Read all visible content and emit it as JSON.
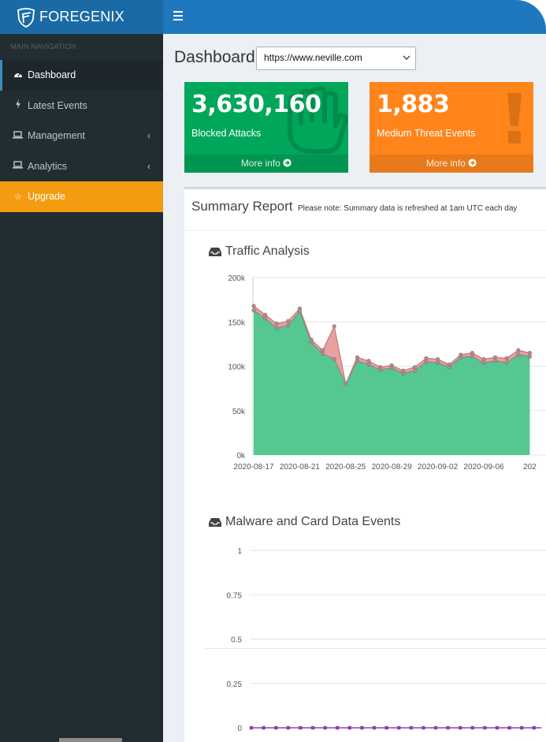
{
  "brand": {
    "name": "FOREGENIX"
  },
  "sidebar": {
    "header": "MAIN NAVIGATION",
    "items": [
      {
        "label": "Dashboard",
        "icon": "dashboard-icon",
        "active": true
      },
      {
        "label": "Latest Events",
        "icon": "bolt-icon"
      },
      {
        "label": "Management",
        "icon": "laptop-icon",
        "submenu": true
      },
      {
        "label": "Analytics",
        "icon": "laptop-icon",
        "submenu": true
      },
      {
        "label": "Upgrade",
        "icon": "star-icon",
        "highlight": true
      }
    ]
  },
  "page": {
    "title": "Dashboard",
    "site_select_value": "https://www.neville.com"
  },
  "stats": [
    {
      "value": "3,630,160",
      "label": "Blocked Attacks",
      "more": "More info",
      "color": "#00a65a"
    },
    {
      "value": "1,883",
      "label": "Medium Threat Events",
      "more": "More info",
      "color": "#ff851b"
    }
  ],
  "summary": {
    "title": "Summary Report",
    "note": "Please note: Summary data is refreshed at 1am UTC each day"
  },
  "sections": {
    "traffic": "Traffic Analysis",
    "malware": "Malware and Card Data Events"
  },
  "chart_data": [
    {
      "type": "area",
      "title": "Traffic Analysis",
      "y_ticks": [
        "0k",
        "50k",
        "100k",
        "150k",
        "200k"
      ],
      "ylim": [
        0,
        200000
      ],
      "x_tick_labels": [
        "2020-08-17",
        "2020-08-21",
        "2020-08-25",
        "2020-08-29",
        "2020-09-02",
        "2020-09-06",
        "202"
      ],
      "x": [
        "2020-08-17",
        "2020-08-18",
        "2020-08-19",
        "2020-08-20",
        "2020-08-21",
        "2020-08-22",
        "2020-08-23",
        "2020-08-24",
        "2020-08-25",
        "2020-08-26",
        "2020-08-27",
        "2020-08-28",
        "2020-08-29",
        "2020-08-30",
        "2020-08-31",
        "2020-09-01",
        "2020-09-02",
        "2020-09-03",
        "2020-09-04",
        "2020-09-05",
        "2020-09-06",
        "2020-09-07",
        "2020-09-08",
        "2020-09-09",
        "2020-09-10"
      ],
      "series": [
        {
          "values": [
            168000,
            158000,
            148000,
            151000,
            165000,
            130000,
            118000,
            145000,
            80000,
            110000,
            106000,
            99000,
            101000,
            95000,
            99000,
            109000,
            108000,
            102000,
            113000,
            115000,
            108000,
            110000,
            109000,
            118000,
            115000
          ],
          "color": "#e8a0a0"
        },
        {
          "values": [
            163000,
            154000,
            143000,
            146000,
            162000,
            127000,
            114000,
            108000,
            80000,
            106000,
            102000,
            96000,
            98000,
            92000,
            95000,
            105000,
            104000,
            99000,
            110000,
            111000,
            104000,
            106000,
            104000,
            113000,
            111000
          ],
          "color": "#55c891"
        }
      ],
      "grid": true
    },
    {
      "type": "line",
      "title": "Malware and Card Data Events",
      "y_ticks": [
        "0",
        "0.25",
        "0.5",
        "0.75",
        "1"
      ],
      "ylim": [
        0,
        1
      ],
      "series": [
        {
          "values": [
            0,
            0,
            0,
            0,
            0,
            0,
            0,
            0,
            0,
            0,
            0,
            0,
            0,
            0,
            0,
            0,
            0,
            0,
            0,
            0,
            0,
            0,
            0,
            0,
            0
          ],
          "color": "#8e44ad"
        }
      ],
      "grid": true
    }
  ]
}
